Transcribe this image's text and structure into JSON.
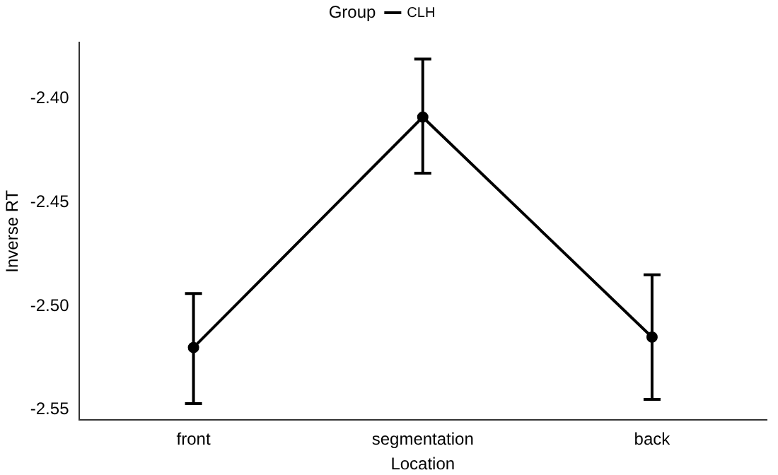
{
  "chart_data": {
    "type": "line",
    "xlabel": "Location",
    "ylabel": "Inverse RT",
    "legend_title": "Group",
    "categories": [
      "front",
      "segmentation",
      "back"
    ],
    "series": [
      {
        "name": "CLH",
        "color": "#000000",
        "values": [
          -2.52,
          -2.409,
          -2.515
        ],
        "errors": [
          [
            -2.547,
            -2.494
          ],
          [
            -2.436,
            -2.381
          ],
          [
            -2.545,
            -2.485
          ]
        ]
      }
    ],
    "ylim": [
      -2.555,
      -2.373
    ],
    "yticks": [
      -2.55,
      {
        "value": -2.5,
        "label": "-2.50"
      },
      -2.45,
      {
        "value": -2.4,
        "label": "-2.40"
      }
    ],
    "grid": false,
    "legend": "top",
    "marker": "circle",
    "line_style": "solid"
  }
}
